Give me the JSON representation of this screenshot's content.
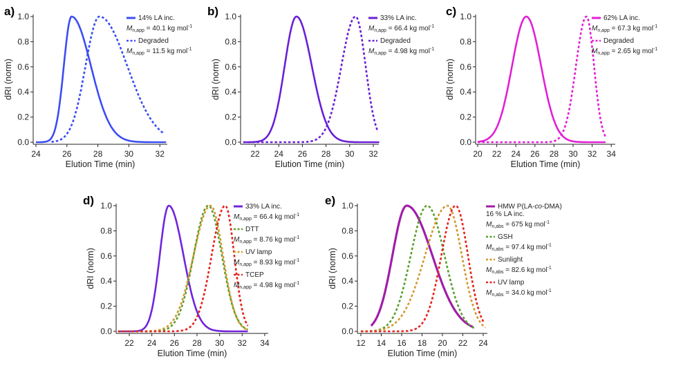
{
  "chart_data": [
    {
      "id": "a",
      "panel_label": "a)",
      "type": "line",
      "xlabel": "Elution Time (min)",
      "ylabel": "dRI (norm)",
      "xlim": [
        24,
        32.5
      ],
      "ylim": [
        0,
        1.0
      ],
      "xticks": [
        24,
        26,
        28,
        30,
        32
      ],
      "yticks": [
        "0.0",
        "0.2",
        "0.4",
        "0.6",
        "0.8",
        "1.0"
      ],
      "series": [
        {
          "name": "14% LA inc.",
          "mn_sub": "n,app",
          "mn_value": " = 40.1 kg mol",
          "mn_exp": "-1",
          "color": "#3b4cf4",
          "dash": false,
          "peak": 26.3,
          "width_left": 0.5,
          "width_right": 1.25,
          "range": [
            24,
            32.4
          ]
        },
        {
          "name": "Degraded",
          "mn_sub": "n,app",
          "mn_value": " = 11.5 kg mol",
          "mn_exp": "-1",
          "color": "#3b4cf4",
          "dash": true,
          "peak": 28.1,
          "width_left": 0.9,
          "width_right": 1.8,
          "range": [
            25,
            32.2
          ]
        }
      ]
    },
    {
      "id": "b",
      "panel_label": "b)",
      "type": "line",
      "xlabel": "Elution Time (min)",
      "ylabel": "dRI (norm)",
      "xlim": [
        21,
        32.5
      ],
      "ylim": [
        0,
        1.0
      ],
      "xticks": [
        22,
        24,
        26,
        28,
        30,
        32
      ],
      "yticks": [
        "0.0",
        "0.2",
        "0.4",
        "0.6",
        "0.8",
        "1.0"
      ],
      "series": [
        {
          "name": "33% LA inc.",
          "mn_sub": "n,app",
          "mn_value": " = 66.4 kg mol",
          "mn_exp": "-1",
          "color": "#6a1fd6",
          "dash": false,
          "peak": 25.5,
          "width_left": 1.0,
          "width_right": 1.3,
          "range": [
            21,
            32.5
          ]
        },
        {
          "name": "Degraded",
          "mn_sub": "n,app",
          "mn_value": " = 4.98 kg mol",
          "mn_exp": "-1",
          "color": "#6a1fd6",
          "dash": true,
          "peak": 30.5,
          "width_left": 1.2,
          "width_right": 0.85,
          "range": [
            21,
            32.4
          ]
        }
      ]
    },
    {
      "id": "c",
      "panel_label": "c)",
      "type": "line",
      "xlabel": "Elution Time (min)",
      "ylabel": "dRI (norm)",
      "xlim": [
        20,
        34
      ],
      "ylim": [
        0,
        1.0
      ],
      "xticks": [
        20,
        22,
        24,
        26,
        28,
        30,
        32,
        34
      ],
      "yticks": [
        "0.0",
        "0.2",
        "0.4",
        "0.6",
        "0.8",
        "1.0"
      ],
      "series": [
        {
          "name": "62% LA inc.",
          "mn_sub": "n,app",
          "mn_value": " = 67.3 kg mol",
          "mn_exp": "-1",
          "color": "#e21fd6",
          "dash": false,
          "peak": 25.1,
          "width_left": 1.5,
          "width_right": 1.55,
          "range": [
            20,
            33.4
          ]
        },
        {
          "name": "Degraded",
          "mn_sub": "n,app",
          "mn_value": " = 2.65 kg mol",
          "mn_exp": "-1",
          "color": "#e21fd6",
          "dash": true,
          "peak": 31.4,
          "width_left": 1.1,
          "width_right": 0.8,
          "range": [
            20,
            33.4
          ]
        }
      ]
    },
    {
      "id": "d",
      "panel_label": "d)",
      "type": "line",
      "xlabel": "Elution Time (min)",
      "ylabel": "dRI (norm)",
      "xlim": [
        21,
        34
      ],
      "ylim": [
        0,
        1.0
      ],
      "xticks": [
        22,
        24,
        26,
        28,
        30,
        32,
        34
      ],
      "yticks": [
        "0.0",
        "0.2",
        "0.4",
        "0.6",
        "0.8",
        "1.0"
      ],
      "series": [
        {
          "name": "33% LA inc.",
          "mn_sub": "n,app",
          "mn_value": " = 66.4 kg mol",
          "mn_exp": "-1",
          "color": "#7024dc",
          "dash": false,
          "peak": 25.5,
          "width_left": 0.8,
          "width_right": 1.3,
          "range": [
            21,
            32.5
          ]
        },
        {
          "name": "DTT",
          "mn_sub": "n,app",
          "mn_value": " = 8.76 kg mol",
          "mn_exp": "-1",
          "color": "#5a9e2c",
          "dash": true,
          "peak": 29.0,
          "width_left": 1.3,
          "width_right": 1.2,
          "range": [
            21,
            32.5
          ]
        },
        {
          "name": "UV lamp",
          "mn_sub": "n,app",
          "mn_value": " = 8.93 kg mol",
          "mn_exp": "-1",
          "color": "#d3982a",
          "dash": true,
          "peak": 29.2,
          "width_left": 1.5,
          "width_right": 1.1,
          "range": [
            21,
            32.5
          ]
        },
        {
          "name": "TCEP",
          "mn_sub": "n,app",
          "mn_value": " = 4.98 kg mol",
          "mn_exp": "-1",
          "color": "#e6231d",
          "dash": true,
          "peak": 30.5,
          "width_left": 1.2,
          "width_right": 0.8,
          "range": [
            21,
            32.5
          ]
        }
      ]
    },
    {
      "id": "e",
      "panel_label": "e)",
      "type": "line",
      "xlabel": "Elution Time (min)",
      "ylabel": "dRI (norm)",
      "xlim": [
        12,
        24.5
      ],
      "ylim": [
        0,
        1.0
      ],
      "xticks": [
        12,
        14,
        16,
        18,
        20,
        22,
        24
      ],
      "yticks": [
        "0.0",
        "0.2",
        "0.4",
        "0.6",
        "0.8",
        "1.0"
      ],
      "series": [
        {
          "name": "HMW P(LA-co-DMA)",
          "name_line2": "16 % LA inc.",
          "mn_sub": "n,abs",
          "mn_value": " = 675 kg mol",
          "mn_exp": "-1",
          "color": "#a01ea6",
          "dash": false,
          "peak": 16.5,
          "width_left": 1.4,
          "width_right": 2.5,
          "range": [
            13,
            23
          ]
        },
        {
          "name": "GSH",
          "mn_sub": "n,abs",
          "mn_value": " = 97.4 kg mol",
          "mn_exp": "-1",
          "color": "#5a9e2c",
          "dash": true,
          "peak": 18.5,
          "width_left": 1.6,
          "width_right": 1.7,
          "range": [
            12,
            23.1
          ]
        },
        {
          "name": "Sunlight",
          "mn_sub": "n,abs",
          "mn_value": " = 82.6 kg mol",
          "mn_exp": "-1",
          "color": "#d3982a",
          "dash": true,
          "peak": 20.5,
          "width_left": 2.2,
          "width_right": 1.4,
          "range": [
            12,
            24.2
          ]
        },
        {
          "name": "UV lamp",
          "mn_sub": "n,abs",
          "mn_value": " = 34.0 kg mol",
          "mn_exp": "-1",
          "color": "#e6231d",
          "dash": true,
          "peak": 21.3,
          "width_left": 1.4,
          "width_right": 1.2,
          "range": [
            12,
            24.1
          ]
        }
      ]
    }
  ]
}
